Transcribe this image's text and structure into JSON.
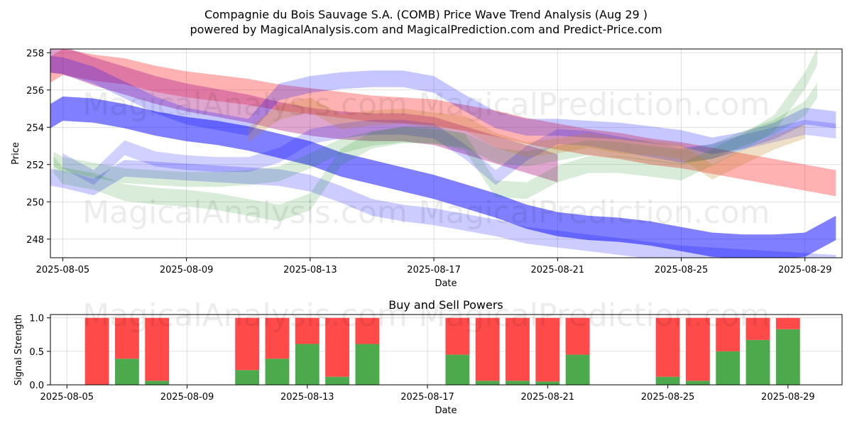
{
  "chart_data": [
    {
      "type": "area",
      "title": "Compagnie du Bois Sauvage S.A. (COMB) Price Wave Trend Analysis (Aug 29 )",
      "subtitle": "powered by MagicalAnalysis.com and MagicalPrediction.com and Predict-Price.com",
      "xlabel": "Date",
      "ylabel": "Price",
      "ylim": [
        247,
        258.2
      ],
      "xlim": [
        -0.4,
        25.2
      ],
      "x_origin_date": "2025-08-05",
      "x_ticks": [
        {
          "x": 0,
          "label": "2025-08-05"
        },
        {
          "x": 4,
          "label": "2025-08-09"
        },
        {
          "x": 8,
          "label": "2025-08-13"
        },
        {
          "x": 12,
          "label": "2025-08-17"
        },
        {
          "x": 16,
          "label": "2025-08-21"
        },
        {
          "x": 20,
          "label": "2025-08-25"
        },
        {
          "x": 24,
          "label": "2025-08-29"
        }
      ],
      "y_ticks": [
        248,
        250,
        252,
        254,
        256,
        258
      ],
      "grid": true,
      "series": [
        {
          "name": "red-trend-main",
          "color": "#ff0000",
          "alpha": 0.3,
          "width": 1.4,
          "x": [
            -1,
            0,
            1,
            2,
            3,
            4,
            5,
            6,
            7,
            8,
            9,
            10,
            11,
            12,
            13,
            14,
            15,
            16,
            17,
            18,
            19,
            20,
            21,
            22,
            23,
            24,
            25
          ],
          "y": [
            256.5,
            257.5,
            257.2,
            257.0,
            256.6,
            256.3,
            256.1,
            255.9,
            255.6,
            255.4,
            255.2,
            255.0,
            254.9,
            254.8,
            254.5,
            254.2,
            253.8,
            253.5,
            253.2,
            253.0,
            252.7,
            252.5,
            252.2,
            251.9,
            251.6,
            251.3,
            251.0
          ]
        },
        {
          "name": "magenta-trend",
          "color": "#b0208a",
          "alpha": 0.4,
          "width": 1.5,
          "x": [
            -1,
            0,
            1,
            2,
            3,
            4,
            5,
            6,
            7,
            8,
            9,
            10,
            11,
            12,
            13,
            14,
            15,
            16
          ],
          "y": [
            257.8,
            257.6,
            257.0,
            256.5,
            256.0,
            255.6,
            255.3,
            255.0,
            254.6,
            254.3,
            254.1,
            254.0,
            254.0,
            253.8,
            253.3,
            252.8,
            252.3,
            251.8
          ]
        },
        {
          "name": "blue-trend-main",
          "color": "#0000ff",
          "alpha": 0.5,
          "width": 1.3,
          "x": [
            -1,
            0,
            1,
            2,
            3,
            4,
            5,
            6,
            7,
            8,
            9,
            10,
            11,
            12,
            13,
            14,
            15,
            16,
            17,
            18,
            19,
            20,
            21,
            22,
            23,
            24,
            25
          ],
          "y": [
            254.0,
            255.0,
            254.9,
            254.6,
            254.2,
            253.9,
            253.7,
            253.4,
            253.0,
            252.6,
            252.0,
            251.6,
            251.2,
            250.8,
            250.3,
            249.8,
            249.2,
            248.8,
            248.6,
            248.5,
            248.3,
            248.0,
            247.7,
            247.6,
            247.6,
            247.7,
            248.6
          ]
        },
        {
          "name": "blue-wave-upper",
          "color": "#0000ff",
          "alpha": 0.22,
          "width": 0.9,
          "x": [
            -1,
            0,
            1,
            2,
            3,
            4,
            5,
            6,
            7,
            8,
            9,
            10,
            11,
            12,
            13,
            14,
            15,
            16,
            17,
            18,
            19,
            20,
            21,
            22,
            23,
            24,
            25
          ],
          "y": [
            257.5,
            257.3,
            256.8,
            256.0,
            255.2,
            254.6,
            254.3,
            254.0,
            255.9,
            256.3,
            256.5,
            256.6,
            256.6,
            256.3,
            255.3,
            254.4,
            254.0,
            254.0,
            253.9,
            253.8,
            253.6,
            253.4,
            253.0,
            253.3,
            253.8,
            254.6,
            254.4
          ]
        },
        {
          "name": "blue-wave-mid",
          "color": "#0000ff",
          "alpha": 0.18,
          "width": 0.8,
          "x": [
            0,
            1,
            2,
            3,
            4,
            5,
            6,
            7,
            8,
            9,
            10,
            11,
            12,
            13,
            14,
            15,
            16,
            17,
            18,
            19,
            20,
            21,
            22,
            23,
            24,
            25
          ],
          "y": [
            252.2,
            251.3,
            252.9,
            252.3,
            252.1,
            252.0,
            252.0,
            252.5,
            253.5,
            253.8,
            254.0,
            254.0,
            253.8,
            252.7,
            251.3,
            252.6,
            253.5,
            253.4,
            253.1,
            252.8,
            252.5,
            252.7,
            253.2,
            253.6,
            254.0,
            253.8
          ]
        },
        {
          "name": "blue-wave-low",
          "color": "#0000ff",
          "alpha": 0.2,
          "width": 0.9,
          "x": [
            -1,
            0,
            1,
            2,
            3,
            4,
            5,
            6,
            7,
            8,
            9,
            10,
            11,
            12,
            13,
            14,
            15,
            16,
            17,
            18,
            19,
            20,
            21,
            22,
            23,
            24,
            25
          ],
          "y": [
            251.5,
            251.2,
            250.8,
            251.8,
            251.7,
            251.6,
            251.5,
            251.4,
            251.3,
            251.0,
            250.4,
            249.7,
            249.4,
            249.2,
            248.9,
            248.6,
            248.2,
            248.0,
            247.8,
            247.6,
            247.4,
            247.2,
            247.1,
            247.0,
            246.9,
            246.8,
            246.7
          ]
        },
        {
          "name": "green-wave-a",
          "color": "#008000",
          "alpha": 0.15,
          "width": 0.9,
          "x": [
            -0.3,
            0,
            1,
            2,
            3,
            4,
            5,
            6,
            7,
            8,
            9,
            10,
            11,
            12,
            13,
            14,
            15,
            16,
            17,
            18,
            19,
            20,
            21,
            22,
            23,
            24,
            24.4
          ],
          "y": [
            252.0,
            251.4,
            251.1,
            250.5,
            250.3,
            250.2,
            250.0,
            249.7,
            249.4,
            250.0,
            252.4,
            253.3,
            253.6,
            253.6,
            253.2,
            250.7,
            250.6,
            251.5,
            252.0,
            252.0,
            251.8,
            251.6,
            252.4,
            253.2,
            254.2,
            256.5,
            257.8
          ]
        },
        {
          "name": "green-wave-b",
          "color": "#008000",
          "alpha": 0.15,
          "width": 0.8,
          "x": [
            -0.3,
            0,
            1,
            2,
            3,
            4,
            5,
            6,
            7,
            8,
            9,
            10,
            11,
            12,
            13,
            14,
            15,
            16,
            17,
            18,
            19,
            20,
            21,
            22,
            23,
            24,
            24.4
          ],
          "y": [
            252.3,
            252.0,
            251.7,
            251.4,
            251.3,
            251.2,
            251.2,
            251.3,
            251.5,
            252.2,
            253.0,
            253.4,
            253.6,
            253.5,
            253.3,
            252.5,
            252.3,
            252.6,
            252.9,
            252.8,
            252.6,
            252.4,
            252.7,
            253.4,
            254.0,
            255.0,
            256.0
          ]
        },
        {
          "name": "orange-wave",
          "color": "#c08020",
          "alpha": 0.25,
          "width": 0.8,
          "x": [
            6,
            7,
            8,
            9,
            10,
            11,
            12,
            13,
            14,
            15,
            16,
            17,
            18,
            19,
            20,
            21,
            22,
            23,
            24
          ],
          "y": [
            253.6,
            254.8,
            255.2,
            254.3,
            254.5,
            254.6,
            254.4,
            254.2,
            253.3,
            252.8,
            253.0,
            253.3,
            253.0,
            252.9,
            252.7,
            251.6,
            252.4,
            253.2,
            253.8
          ]
        }
      ],
      "watermarks": [
        "MagicalAnalysis.com",
        "MagicalPrediction.com",
        "MagicalAnalysis.com",
        "MagicalPrediction.com"
      ]
    },
    {
      "type": "bar",
      "stacked": true,
      "title": "Buy and Sell Powers",
      "xlabel": "Date",
      "ylabel": "Signal Strength",
      "ylim": [
        0,
        1.05
      ],
      "xlim": [
        -0.55,
        25.8
      ],
      "x_origin_date": "2025-08-05",
      "x_ticks": [
        {
          "x": 0,
          "label": "2025-08-05"
        },
        {
          "x": 4,
          "label": "2025-08-09"
        },
        {
          "x": 8,
          "label": "2025-08-13"
        },
        {
          "x": 12,
          "label": "2025-08-17"
        },
        {
          "x": 16,
          "label": "2025-08-21"
        },
        {
          "x": 20,
          "label": "2025-08-25"
        },
        {
          "x": 24,
          "label": "2025-08-29"
        }
      ],
      "y_ticks": [
        0.0,
        0.5,
        1.0
      ],
      "y_tick_labels": [
        "0.0",
        "0.5",
        "1.0"
      ],
      "grid": true,
      "colors": {
        "buy": "#4caa4c",
        "sell": "#ff4a4a"
      },
      "days": [
        1,
        2,
        3,
        6,
        7,
        8,
        9,
        10,
        13,
        14,
        15,
        16,
        17,
        20,
        21,
        22,
        23,
        24
      ],
      "buy": [
        0.0,
        0.39,
        0.06,
        0.22,
        0.39,
        0.61,
        0.12,
        0.61,
        0.45,
        0.06,
        0.06,
        0.05,
        0.45,
        0.12,
        0.06,
        0.5,
        0.67,
        0.83
      ],
      "sell": [
        1.0,
        0.61,
        0.94,
        0.78,
        0.61,
        0.39,
        0.88,
        0.39,
        0.55,
        0.94,
        0.94,
        0.95,
        0.55,
        0.88,
        0.94,
        0.5,
        0.33,
        0.17
      ],
      "watermarks": [
        "MagicalAnalysis.com",
        "MagicalPrediction.com"
      ]
    }
  ]
}
